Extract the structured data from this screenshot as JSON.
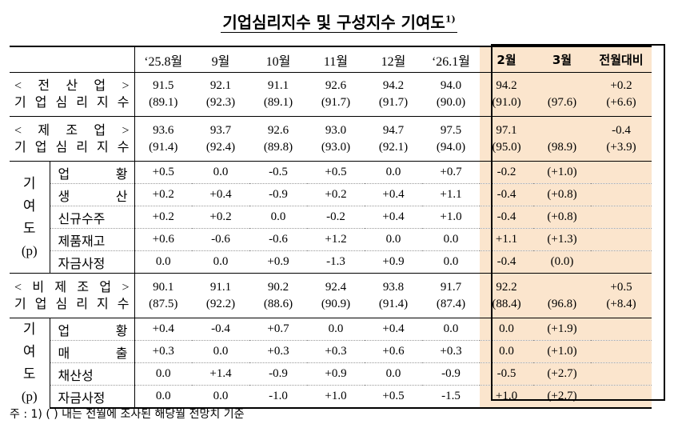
{
  "title": "기업심리지수 및 구성지수 기여도",
  "title_sup": "1)",
  "columns": [
    "‘25.8월",
    "9월",
    "10월",
    "11월",
    "12월",
    "‘26.1월",
    "2월",
    "3월",
    "전월대비"
  ],
  "sections": [
    {
      "label1": "< 전 산 업 >",
      "label2": "기 업 심 리 지 수",
      "line1": [
        "91.5",
        "92.1",
        "91.1",
        "92.6",
        "94.2",
        "94.0",
        "94.2",
        "",
        "+0.2"
      ],
      "line2": [
        "(89.1)",
        "(92.3)",
        "(89.1)",
        "(91.7)",
        "(91.7)",
        "(90.0)",
        "(91.0)",
        "(97.6)",
        "(+6.6)"
      ]
    },
    {
      "label1": "< 제 조 업 >",
      "label2": "기 업 심 리 지 수",
      "line1": [
        "93.6",
        "93.7",
        "92.6",
        "93.0",
        "94.7",
        "97.5",
        "97.1",
        "",
        "-0.4"
      ],
      "line2": [
        "(91.4)",
        "(92.4)",
        "(89.8)",
        "(93.0)",
        "(92.1)",
        "(94.0)",
        "(95.0)",
        "(98.9)",
        "(+3.9)"
      ],
      "contrib_label": [
        "기",
        "여",
        "도",
        "(p)"
      ],
      "rows": [
        {
          "label": "업 황",
          "values": [
            "+0.5",
            "0.0",
            "-0.5",
            "+0.5",
            "0.0",
            "+0.7",
            "-0.2",
            "(+1.0)",
            ""
          ]
        },
        {
          "label": "생 산",
          "values": [
            "+0.2",
            "+0.4",
            "-0.9",
            "+0.2",
            "+0.4",
            "+1.1",
            "-0.4",
            "(+0.8)",
            ""
          ]
        },
        {
          "label": "신규수주",
          "values": [
            "+0.2",
            "+0.2",
            "0.0",
            "-0.2",
            "+0.4",
            "+1.0",
            "-0.4",
            "(+0.8)",
            ""
          ]
        },
        {
          "label": "제품재고",
          "values": [
            "+0.6",
            "-0.6",
            "-0.6",
            "+1.2",
            "0.0",
            "0.0",
            "+1.1",
            "(+1.3)",
            ""
          ]
        },
        {
          "label": "자금사정",
          "values": [
            "0.0",
            "0.0",
            "+0.9",
            "-1.3",
            "+0.9",
            "0.0",
            "-0.4",
            "(0.0)",
            ""
          ]
        }
      ]
    },
    {
      "label1": "< 비 제 조 업 >",
      "label2": "기 업 심 리 지 수",
      "line1": [
        "90.1",
        "91.1",
        "90.2",
        "92.4",
        "93.8",
        "91.7",
        "92.2",
        "",
        "+0.5"
      ],
      "line2": [
        "(87.5)",
        "(92.2)",
        "(88.6)",
        "(90.9)",
        "(91.4)",
        "(87.4)",
        "(88.4)",
        "(96.8)",
        "(+8.4)"
      ],
      "contrib_label": [
        "기",
        "여",
        "도",
        "(p)"
      ],
      "rows": [
        {
          "label": "업 황",
          "values": [
            "+0.4",
            "-0.4",
            "+0.7",
            "0.0",
            "+0.4",
            "0.0",
            "0.0",
            "(+1.9)",
            ""
          ]
        },
        {
          "label": "매 출",
          "values": [
            "+0.3",
            "0.0",
            "+0.3",
            "+0.3",
            "+0.6",
            "+0.3",
            "0.0",
            "(+1.0)",
            ""
          ]
        },
        {
          "label": "채산성",
          "values": [
            "0.0",
            "+1.4",
            "-0.9",
            "+0.9",
            "0.0",
            "-0.9",
            "-0.5",
            "(+2.7)",
            ""
          ]
        },
        {
          "label": "자금사정",
          "values": [
            "0.0",
            "0.0",
            "-1.0",
            "+1.0",
            "+0.5",
            "-1.5",
            "+1.0",
            "(+2.7)",
            ""
          ]
        }
      ]
    }
  ],
  "note": "주 : 1) (   ) 내는 전월에 조사된 해당월 전망치 기준"
}
